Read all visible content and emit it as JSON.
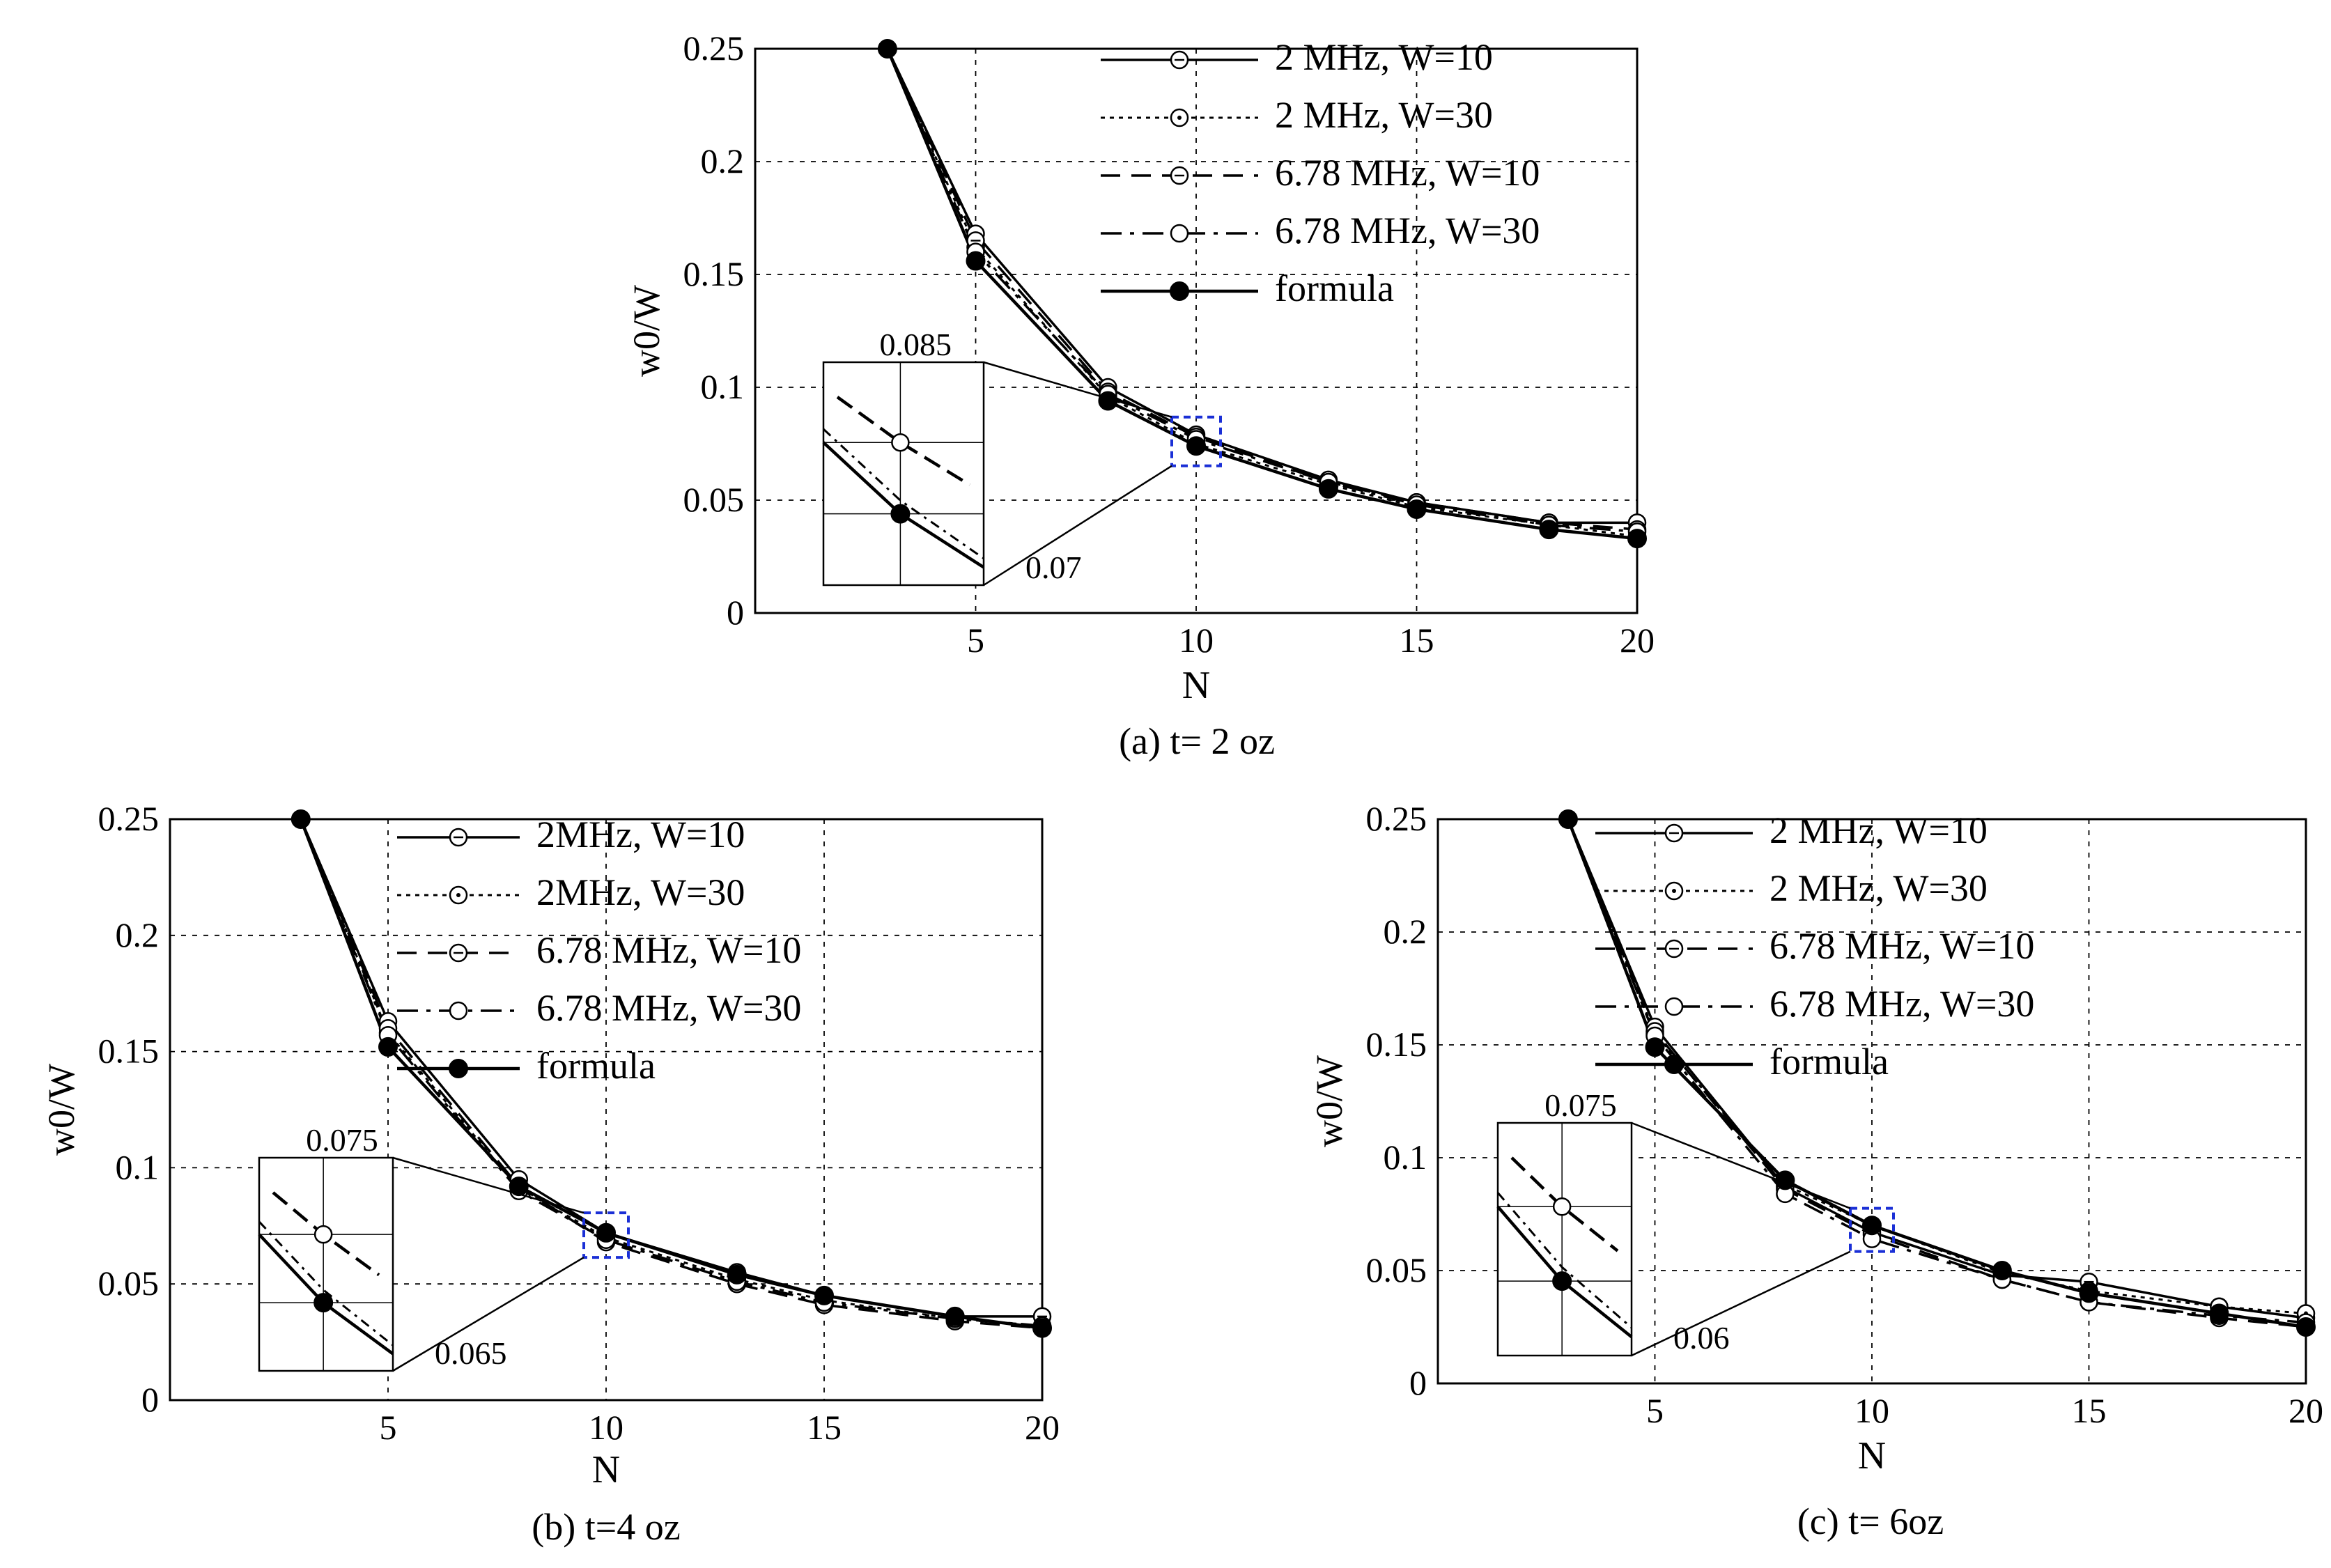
{
  "chart_data": [
    {
      "type": "line",
      "id": "a",
      "caption": "(a) t= 2 oz",
      "xlabel": "N",
      "ylabel": "w0/W",
      "xlim": [
        0,
        20
      ],
      "ylim": [
        0,
        0.25
      ],
      "xticks": [
        5,
        10,
        15,
        20
      ],
      "yticks": [
        0,
        0.05,
        0.1,
        0.15,
        0.2,
        0.25
      ],
      "ytick_labels": [
        "0",
        "0.05",
        "0.1",
        "0.15",
        "0.2",
        "0.25"
      ],
      "grid": true,
      "legend_position": "top-right",
      "x": [
        3,
        5,
        8,
        10,
        13,
        15,
        18,
        20
      ],
      "series": [
        {
          "name": "2 MHz, W=10",
          "style": "solid-open",
          "values": [
            0.25,
            0.168,
            0.1,
            0.079,
            0.059,
            0.049,
            0.04,
            0.04
          ]
        },
        {
          "name": "2 MHz, W=30",
          "style": "dotted-open",
          "values": [
            0.25,
            0.162,
            0.096,
            0.075,
            0.057,
            0.047,
            0.039,
            0.034
          ]
        },
        {
          "name": "6.78 MHz, W=10",
          "style": "dashed-open",
          "values": [
            0.25,
            0.165,
            0.098,
            0.078,
            0.058,
            0.049,
            0.04,
            0.037
          ]
        },
        {
          "name": "6.78 MHz, W=30",
          "style": "dashdot-open",
          "values": [
            0.25,
            0.16,
            0.097,
            0.077,
            0.058,
            0.048,
            0.039,
            0.036
          ]
        },
        {
          "name": "formula",
          "style": "solid-filled",
          "values": [
            0.25,
            0.156,
            0.094,
            0.074,
            0.055,
            0.046,
            0.037,
            0.033
          ]
        }
      ],
      "zoom_inset": {
        "y_top": "0.085",
        "y_bottom": "0.07",
        "center_x": 10,
        "center_y": 0.076
      }
    },
    {
      "type": "line",
      "id": "b",
      "caption": "(b)  t=4 oz",
      "xlabel": "N",
      "ylabel": "w0/W",
      "xlim": [
        0,
        20
      ],
      "ylim": [
        0,
        0.25
      ],
      "xticks": [
        5,
        10,
        15,
        20
      ],
      "yticks": [
        0,
        0.05,
        0.1,
        0.15,
        0.2,
        0.25
      ],
      "ytick_labels": [
        "0",
        "0.05",
        "0.1",
        "0.15",
        "0.2",
        "0.25"
      ],
      "grid": true,
      "legend_position": "top-right",
      "x": [
        3,
        5,
        8,
        10,
        13,
        15,
        18,
        20
      ],
      "series": [
        {
          "name": "2MHz, W=10",
          "style": "solid-open",
          "values": [
            0.25,
            0.163,
            0.095,
            0.072,
            0.055,
            0.045,
            0.036,
            0.036
          ]
        },
        {
          "name": "2MHz, W=30",
          "style": "dotted-open",
          "values": [
            0.25,
            0.158,
            0.091,
            0.07,
            0.052,
            0.043,
            0.035,
            0.032
          ]
        },
        {
          "name": "6.78 MHz, W=10",
          "style": "dashed-open",
          "values": [
            0.25,
            0.16,
            0.092,
            0.068,
            0.05,
            0.041,
            0.034,
            0.031
          ]
        },
        {
          "name": "6.78 MHz, W=30",
          "style": "dashdot-open",
          "values": [
            0.25,
            0.157,
            0.09,
            0.069,
            0.051,
            0.042,
            0.035,
            0.032
          ]
        },
        {
          "name": "formula",
          "style": "solid-filled",
          "values": [
            0.25,
            0.152,
            0.092,
            0.072,
            0.054,
            0.045,
            0.036,
            0.031
          ]
        }
      ],
      "zoom_inset": {
        "y_top": "0.075",
        "y_bottom": "0.065",
        "center_x": 10,
        "center_y": 0.071
      }
    },
    {
      "type": "line",
      "id": "c",
      "caption": "(c)  t= 6oz",
      "xlabel": "N",
      "ylabel": "w0/W",
      "xlim": [
        0,
        20
      ],
      "ylim": [
        0,
        0.25
      ],
      "xticks": [
        5,
        10,
        15,
        20
      ],
      "yticks": [
        0,
        0.05,
        0.1,
        0.15,
        0.2,
        0.25
      ],
      "ytick_labels": [
        "0",
        "0.05",
        "0.1",
        "0.15",
        "0.2",
        "0.25"
      ],
      "grid": true,
      "legend_position": "top-right",
      "x": [
        3,
        5,
        8,
        10,
        13,
        15,
        18,
        20
      ],
      "series": [
        {
          "name": "2 MHz, W=10",
          "style": "solid-open",
          "values": [
            0.25,
            0.158,
            0.087,
            0.067,
            0.048,
            0.045,
            0.034,
            0.029
          ]
        },
        {
          "name": "2 MHz, W=30",
          "style": "dotted-open",
          "values": [
            0.25,
            0.155,
            0.088,
            0.07,
            0.049,
            0.041,
            0.034,
            0.031
          ]
        },
        {
          "name": "6.78 MHz, W=10",
          "style": "dashed-open",
          "values": [
            0.25,
            0.156,
            0.086,
            0.066,
            0.046,
            0.036,
            0.029,
            0.025
          ]
        },
        {
          "name": "6.78 MHz, W=30",
          "style": "dashdot-open",
          "values": [
            0.25,
            0.154,
            0.084,
            0.064,
            0.046,
            0.036,
            0.03,
            0.027
          ]
        },
        {
          "name": "formula",
          "style": "solid-filled",
          "values": [
            0.25,
            0.149,
            0.09,
            0.07,
            0.05,
            0.04,
            0.031,
            0.025
          ]
        }
      ],
      "zoom_inset": {
        "y_top": "0.075",
        "y_bottom": "0.06",
        "center_x": 10,
        "center_y": 0.068
      }
    }
  ]
}
